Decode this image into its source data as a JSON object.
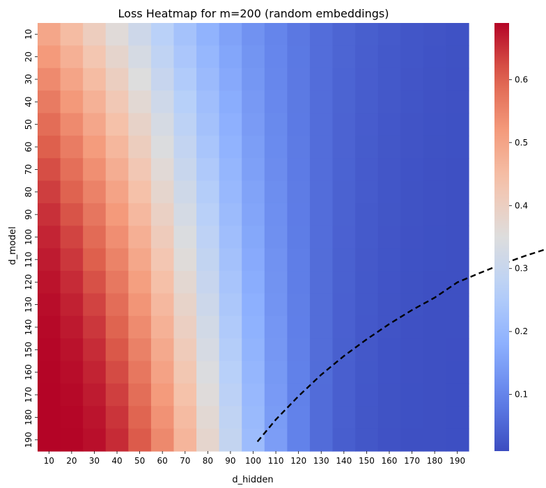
{
  "chart_data": {
    "type": "heatmap",
    "title": "Loss Heatmap for m=200 (random embeddings)",
    "xlabel": "d_hidden",
    "ylabel": "d_model",
    "x_ticks": [
      "10",
      "20",
      "30",
      "40",
      "50",
      "60",
      "70",
      "80",
      "90",
      "100",
      "110",
      "120",
      "130",
      "140",
      "150",
      "160",
      "170",
      "180",
      "190"
    ],
    "y_ticks": [
      "10",
      "20",
      "30",
      "40",
      "50",
      "60",
      "70",
      "80",
      "90",
      "100",
      "110",
      "120",
      "130",
      "140",
      "150",
      "160",
      "170",
      "180",
      "190"
    ],
    "colorbar": {
      "cmap": "coolwarm",
      "range": [
        0.01,
        0.69
      ],
      "ticks": [
        0.1,
        0.2,
        0.3,
        0.4,
        0.5,
        0.6
      ],
      "tick_labels": [
        "0.1",
        "0.2",
        "0.3",
        "0.4",
        "0.5",
        "0.6"
      ]
    },
    "grid": false,
    "overlay": {
      "style": "dashed",
      "color": "#000000",
      "description": "boundary curve",
      "points": [
        [
          101.9,
          190.8
        ],
        [
          110,
          181
        ],
        [
          120,
          170.6
        ],
        [
          130,
          161.1
        ],
        [
          140,
          152.8
        ],
        [
          150,
          145.4
        ],
        [
          160,
          138.6
        ],
        [
          170,
          132.4
        ],
        [
          180,
          126.9
        ],
        [
          190,
          120.1
        ],
        [
          200,
          115.9
        ],
        [
          210,
          111.9
        ],
        [
          220,
          108.3
        ],
        [
          230,
          105.1
        ]
      ]
    }
  }
}
